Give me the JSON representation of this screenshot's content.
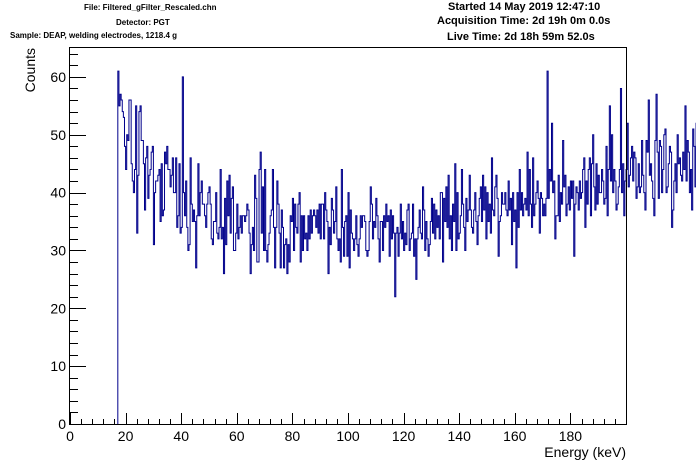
{
  "header": {
    "file": "File: Filtered_gFilter_Rescaled.chn",
    "detector": "Detector: PGT",
    "sample": "Sample: DEAP, welding electrodes, 1218.4 g",
    "started": "Started 14 May 2019 12:47:10",
    "acquisition": "Acquisition Time: 2d 19h 0m 0.0s",
    "live": "Live Time: 2d 18h 59m 52.0s"
  },
  "chart_data": {
    "type": "line",
    "title": "",
    "xlabel": "Energy (keV)",
    "ylabel": "Counts",
    "xlim": [
      0,
      200
    ],
    "ylim": [
      0,
      65
    ],
    "x_ticks": [
      0,
      20,
      40,
      60,
      80,
      100,
      120,
      140,
      160,
      180
    ],
    "y_ticks": [
      0,
      10,
      20,
      30,
      40,
      50,
      60
    ],
    "grid": false,
    "line_color": "#00008b",
    "bin_width": 0.4,
    "bin_start": 17.2,
    "series": [
      {
        "values": [
          61,
          55,
          57,
          56,
          54,
          53,
          48,
          44,
          50,
          49,
          56,
          56,
          45,
          42,
          40,
          44,
          55,
          33,
          43,
          54,
          55,
          49,
          49,
          45,
          37,
          46,
          48,
          39,
          43,
          44,
          47,
          48,
          31,
          40,
          42,
          42,
          43,
          44,
          35,
          45,
          36,
          37,
          47,
          45,
          48,
          44,
          44,
          41,
          43,
          46,
          40,
          40,
          46,
          34,
          36,
          45,
          33,
          34,
          60,
          40,
          36,
          42,
          34,
          30,
          31,
          46,
          38,
          35,
          37,
          35,
          27,
          36,
          45,
          36,
          40,
          42,
          38,
          38,
          36,
          34,
          38,
          40,
          41,
          38,
          32,
          31,
          35,
          35,
          40,
          33,
          32,
          34,
          44,
          32,
          34,
          26,
          39,
          31,
          42,
          36,
          43,
          33,
          39,
          41,
          30,
          30,
          33,
          38,
          32,
          34,
          36,
          33,
          36,
          36,
          35,
          36,
          38,
          37,
          33,
          26,
          31,
          34,
          30,
          43,
          39,
          28,
          28,
          44,
          47,
          33,
          41,
          30,
          44,
          30,
          28,
          31,
          33,
          36,
          37,
          44,
          34,
          27,
          34,
          42,
          38,
          33,
          27,
          37,
          34,
          27,
          31,
          32,
          26,
          31,
          28,
          36,
          35,
          39,
          30,
          38,
          34,
          33,
          38,
          40,
          28,
          36,
          30,
          36,
          32,
          33,
          30,
          36,
          32,
          37,
          33,
          36,
          37,
          36,
          34,
          37,
          33,
          38,
          32,
          38,
          38,
          32,
          40,
          37,
          35,
          26,
          34,
          31,
          39,
          37,
          33,
          35,
          41,
          32,
          30,
          32,
          28,
          44,
          34,
          29,
          35,
          36,
          29,
          40,
          27,
          37,
          33,
          32,
          30,
          32,
          36,
          31,
          29,
          32,
          36,
          34,
          36,
          36,
          35,
          30,
          29,
          30,
          35,
          41,
          38,
          32,
          35,
          34,
          39,
          36,
          32,
          28,
          35,
          35,
          30,
          36,
          34,
          38,
          35,
          36,
          29,
          37,
          32,
          36,
          33,
          22,
          33,
          34,
          29,
          33,
          38,
          32,
          35,
          30,
          33,
          31,
          37,
          38,
          30,
          32,
          33,
          38,
          29,
          32,
          25,
          32,
          34,
          37,
          33,
          32,
          41,
          37,
          30,
          35,
          32,
          29,
          31,
          35,
          39,
          33,
          38,
          32,
          37,
          34,
          36,
          32,
          40,
          40,
          28,
          39,
          35,
          41,
          34,
          43,
          32,
          36,
          30,
          38,
          35,
          45,
          30,
          40,
          32,
          33,
          36,
          44,
          38,
          34,
          30,
          39,
          35,
          37,
          43,
          37,
          34,
          33,
          37,
          40,
          35,
          31,
          36,
          39,
          41,
          35,
          43,
          37,
          41,
          32,
          40,
          35,
          38,
          33,
          46,
          37,
          36,
          41,
          43,
          39,
          29,
          35,
          36,
          40,
          38,
          38,
          40,
          37,
          36,
          42,
          37,
          39,
          31,
          40,
          35,
          37,
          27,
          40,
          34,
          44,
          37,
          40,
          36,
          38,
          39,
          37,
          47,
          36,
          44,
          38,
          34,
          46,
          36,
          38,
          40,
          42,
          39,
          33,
          40,
          39,
          36,
          38,
          36,
          39,
          61,
          39,
          44,
          42,
          52,
          40,
          42,
          32,
          36,
          36,
          43,
          35,
          40,
          38,
          49,
          41,
          43,
          36,
          38,
          41,
          37,
          42,
          39,
          42,
          29,
          38,
          41,
          40,
          37,
          42,
          39,
          40,
          44,
          46,
          34,
          42,
          38,
          44,
          46,
          36,
          45,
          50,
          41,
          37,
          45,
          38,
          43,
          40,
          40,
          44,
          42,
          38,
          39,
          48,
          36,
          44,
          55,
          42,
          50,
          40,
          44,
          42,
          37,
          38,
          41,
          44,
          58,
          40,
          45,
          36,
          42,
          44,
          52,
          41,
          43,
          46,
          48,
          42,
          47,
          46,
          39,
          41,
          45,
          40,
          41,
          49,
          43,
          40,
          37,
          49,
          47,
          56,
          43,
          45,
          42,
          39,
          36,
          49,
          57,
          47,
          39,
          49,
          48,
          40,
          44,
          50,
          51,
          40,
          41,
          45,
          48,
          47,
          34,
          37,
          42,
          45,
          40,
          50,
          45,
          46,
          43,
          42,
          47,
          44,
          55,
          42,
          49,
          47,
          40,
          44,
          37,
          51,
          48,
          41,
          52,
          43,
          46,
          44,
          42,
          47,
          40,
          51,
          33,
          50,
          45,
          43,
          59,
          50,
          50,
          48,
          46,
          43,
          41,
          53,
          35,
          48,
          40,
          41,
          48,
          45,
          56,
          45,
          44,
          32,
          46,
          43,
          40,
          39,
          30,
          48,
          44,
          47,
          44,
          40,
          48,
          41,
          37,
          44,
          50,
          46,
          44,
          37,
          38,
          27
        ]
      }
    ]
  }
}
